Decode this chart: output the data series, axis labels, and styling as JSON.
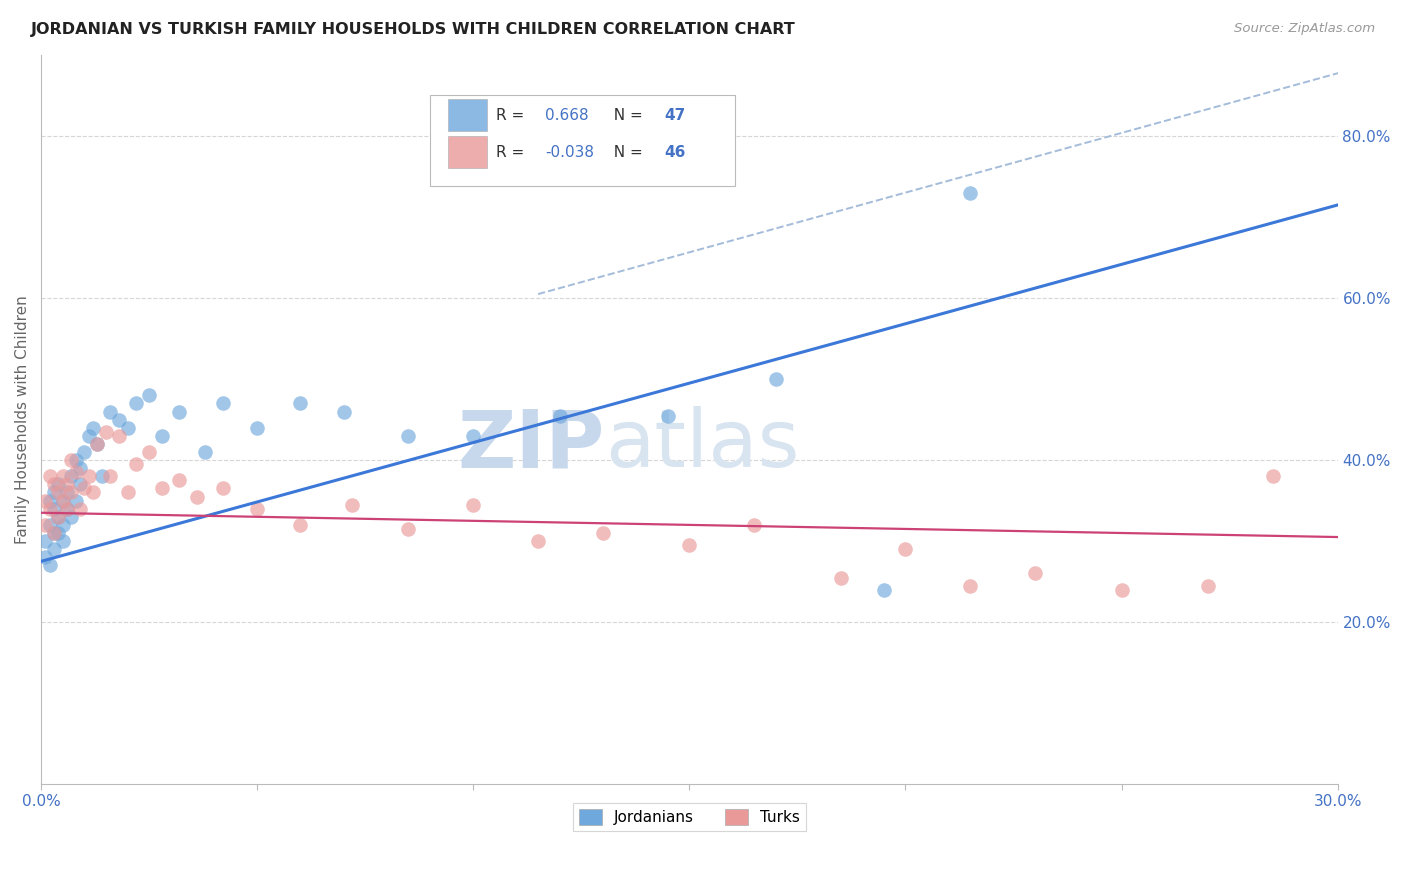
{
  "title": "JORDANIAN VS TURKISH FAMILY HOUSEHOLDS WITH CHILDREN CORRELATION CHART",
  "source": "Source: ZipAtlas.com",
  "ylabel": "Family Households with Children",
  "xlim": [
    0.0,
    0.3
  ],
  "ylim": [
    0.0,
    0.9
  ],
  "x_ticks": [
    0.0,
    0.05,
    0.1,
    0.15,
    0.2,
    0.25,
    0.3
  ],
  "x_tick_labels": [
    "0.0%",
    "",
    "",
    "",
    "",
    "",
    "30.0%"
  ],
  "y_ticks_right": [
    0.2,
    0.4,
    0.6,
    0.8
  ],
  "y_tick_labels_right": [
    "20.0%",
    "40.0%",
    "60.0%",
    "80.0%"
  ],
  "r_jordanian": 0.668,
  "n_jordanian": 47,
  "r_turkish": -0.038,
  "n_turkish": 46,
  "blue_color": "#6fa8dc",
  "pink_color": "#ea9999",
  "blue_line_color": "#3c78d8",
  "pink_line_color": "#cc4275",
  "dashed_line_color": "#a4bcd9",
  "grid_color": "#cccccc",
  "watermark_zip_color": "#c8d8ec",
  "watermark_atlas_color": "#c8d8ec",
  "title_color": "#222222",
  "axis_label_color": "#666666",
  "tick_label_color": "#4472c4",
  "jordanians_x": [
    0.001,
    0.001,
    0.002,
    0.002,
    0.002,
    0.003,
    0.003,
    0.003,
    0.003,
    0.004,
    0.004,
    0.004,
    0.005,
    0.005,
    0.005,
    0.006,
    0.006,
    0.007,
    0.007,
    0.008,
    0.008,
    0.009,
    0.009,
    0.01,
    0.011,
    0.012,
    0.013,
    0.014,
    0.016,
    0.018,
    0.02,
    0.022,
    0.025,
    0.028,
    0.032,
    0.038,
    0.042,
    0.05,
    0.06,
    0.07,
    0.085,
    0.1,
    0.12,
    0.145,
    0.17,
    0.195,
    0.215
  ],
  "jordanians_y": [
    0.3,
    0.28,
    0.32,
    0.35,
    0.27,
    0.31,
    0.34,
    0.36,
    0.29,
    0.33,
    0.37,
    0.31,
    0.35,
    0.32,
    0.3,
    0.36,
    0.34,
    0.38,
    0.33,
    0.4,
    0.35,
    0.39,
    0.37,
    0.41,
    0.43,
    0.44,
    0.42,
    0.38,
    0.46,
    0.45,
    0.44,
    0.47,
    0.48,
    0.43,
    0.46,
    0.41,
    0.47,
    0.44,
    0.47,
    0.46,
    0.43,
    0.43,
    0.455,
    0.455,
    0.5,
    0.24,
    0.73
  ],
  "turks_x": [
    0.001,
    0.001,
    0.002,
    0.002,
    0.003,
    0.003,
    0.004,
    0.004,
    0.005,
    0.005,
    0.006,
    0.006,
    0.007,
    0.007,
    0.008,
    0.009,
    0.01,
    0.011,
    0.012,
    0.013,
    0.015,
    0.016,
    0.018,
    0.02,
    0.022,
    0.025,
    0.028,
    0.032,
    0.036,
    0.042,
    0.05,
    0.06,
    0.072,
    0.085,
    0.1,
    0.115,
    0.13,
    0.15,
    0.165,
    0.185,
    0.2,
    0.215,
    0.23,
    0.25,
    0.27,
    0.285
  ],
  "turks_y": [
    0.35,
    0.32,
    0.38,
    0.34,
    0.37,
    0.31,
    0.36,
    0.33,
    0.38,
    0.35,
    0.34,
    0.37,
    0.4,
    0.36,
    0.385,
    0.34,
    0.365,
    0.38,
    0.36,
    0.42,
    0.435,
    0.38,
    0.43,
    0.36,
    0.395,
    0.41,
    0.365,
    0.375,
    0.355,
    0.365,
    0.34,
    0.32,
    0.345,
    0.315,
    0.345,
    0.3,
    0.31,
    0.295,
    0.32,
    0.255,
    0.29,
    0.245,
    0.26,
    0.24,
    0.245,
    0.38
  ],
  "dashed_line_x": [
    0.115,
    0.305
  ],
  "dashed_line_y": [
    0.605,
    0.885
  ]
}
